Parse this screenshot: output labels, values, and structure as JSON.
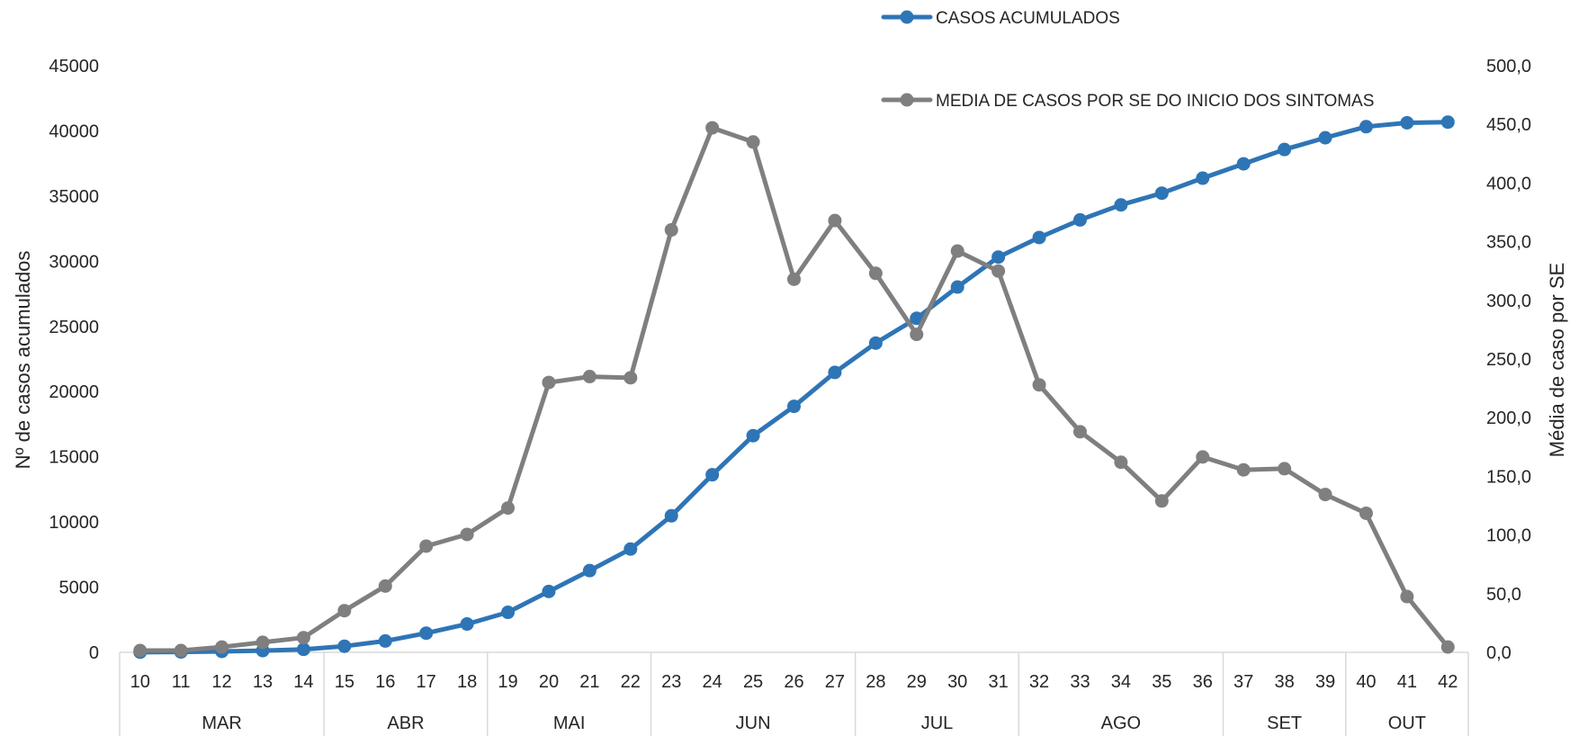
{
  "chart_data": {
    "type": "line",
    "x": [
      "10",
      "11",
      "12",
      "13",
      "14",
      "15",
      "16",
      "17",
      "18",
      "19",
      "20",
      "21",
      "22",
      "23",
      "24",
      "25",
      "26",
      "27",
      "28",
      "29",
      "30",
      "31",
      "32",
      "33",
      "34",
      "35",
      "36",
      "37",
      "38",
      "39",
      "40",
      "41",
      "42"
    ],
    "month_groups": [
      {
        "label": "MAR",
        "from": "10",
        "to": "14"
      },
      {
        "label": "ABR",
        "from": "15",
        "to": "18"
      },
      {
        "label": "MAI",
        "from": "19",
        "to": "22"
      },
      {
        "label": "JUN",
        "from": "23",
        "to": "27"
      },
      {
        "label": "JUL",
        "from": "28",
        "to": "31"
      },
      {
        "label": "AGO",
        "from": "32",
        "to": "36"
      },
      {
        "label": "SET",
        "from": "37",
        "to": "39"
      },
      {
        "label": "OUT",
        "from": "40",
        "to": "42"
      }
    ],
    "series": [
      {
        "name": "CASOS ACUMULADOS",
        "axis": "left",
        "color": "#2E75B6",
        "values": [
          10,
          30,
          70,
          130,
          230,
          470,
          870,
          1470,
          2170,
          3070,
          4670,
          6270,
          7920,
          10470,
          13620,
          16620,
          18870,
          21470,
          23720,
          25620,
          28020,
          30320,
          31820,
          33170,
          34320,
          35220,
          36370,
          37470,
          38570,
          39470,
          40320,
          40620,
          40670
        ]
      },
      {
        "name": "MEDIA DE CASOS POR SE DO INICIO DOS SINTOMAS",
        "axis": "right",
        "color": "#7F7F7F",
        "values": [
          1.5,
          1.5,
          4.5,
          8.5,
          12.5,
          35.5,
          56.5,
          90.5,
          100.5,
          123.0,
          230.0,
          235.0,
          234.0,
          360.0,
          447.0,
          435.0,
          318.0,
          368.0,
          323.0,
          271.0,
          342.0,
          325.0,
          228.0,
          188.0,
          162.0,
          129.0,
          166.5,
          155.5,
          156.5,
          134.5,
          118.5,
          47.5,
          4.5
        ]
      }
    ],
    "ylabel": "Nº de casos acumulados",
    "ylabel_right": "Média de caso por SE",
    "ylim": [
      0,
      45000
    ],
    "yticks": [
      "0",
      "5000",
      "10000",
      "15000",
      "20000",
      "25000",
      "30000",
      "35000",
      "40000",
      "45000"
    ],
    "ylim_right": [
      0,
      500
    ],
    "yticks_right": [
      "0,0",
      "50,0",
      "100,0",
      "150,0",
      "200,0",
      "250,0",
      "300,0",
      "350,0",
      "400,0",
      "450,0",
      "500,0"
    ],
    "grid": false,
    "legend_position": "top-right"
  }
}
